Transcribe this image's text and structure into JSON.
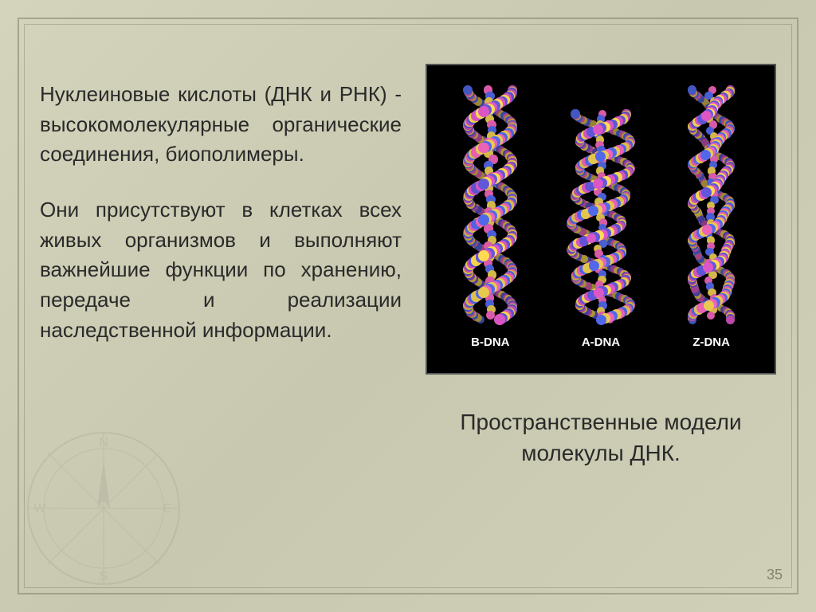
{
  "text": {
    "para1": "Нуклеиновые кислоты (ДНК и РНК) - высокомолекулярные органические соединения, биополимеры.",
    "para2": "Они присутствуют в клетках всех живых организмов и выполняют важнейшие функции по хранению, передаче и реализации наследственной информации."
  },
  "figure": {
    "labels": [
      "B-DNA",
      "A-DNA",
      "Z-DNA"
    ],
    "caption": "Пространственные модели молекулы ДНК.",
    "atom_colors": [
      "#c94fb5",
      "#4a5fd6",
      "#e8c84a",
      "#d85aa8",
      "#5a4fc7",
      "#d4b848"
    ],
    "background": "#000000"
  },
  "page_number": "35"
}
